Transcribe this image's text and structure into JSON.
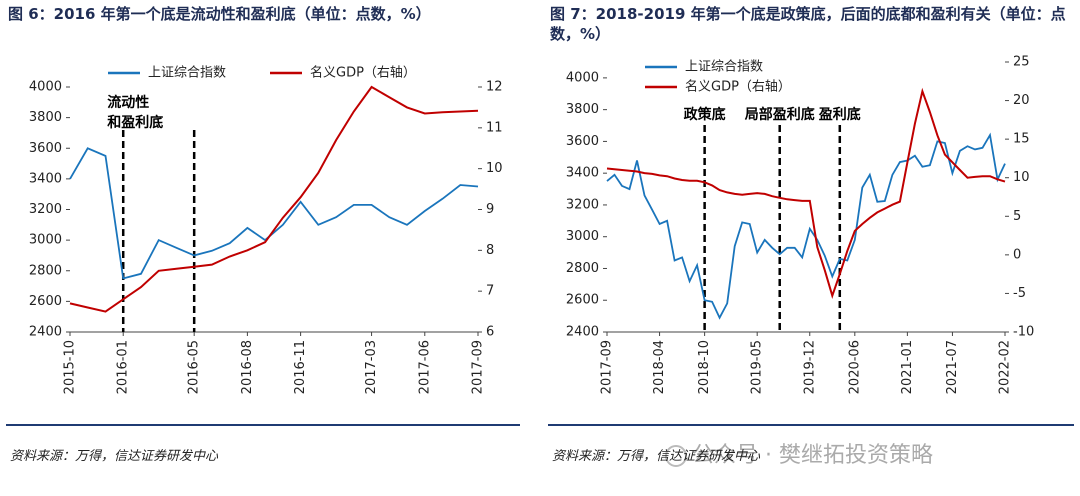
{
  "chart_data": [
    {
      "type": "line",
      "title": "图 6：2016 年第一个底是流动性和盈利底（单位：点数，%）",
      "x": [
        "2015-10",
        "2015-11",
        "2015-12",
        "2016-01",
        "2016-02",
        "2016-03",
        "2016-04",
        "2016-05",
        "2016-06",
        "2016-07",
        "2016-08",
        "2016-09",
        "2016-10",
        "2016-11",
        "2016-12",
        "2017-01",
        "2017-02",
        "2017-03",
        "2017-04",
        "2017-05",
        "2017-06",
        "2017-07",
        "2017-08",
        "2017-09"
      ],
      "xticks": [
        "2015-10",
        "2016-01",
        "2016-05",
        "2016-08",
        "2016-11",
        "2017-03",
        "2017-06",
        "2017-09"
      ],
      "series": [
        {
          "name": "上证综合指数",
          "color": "#1a75bc",
          "values": [
            3400,
            3600,
            3550,
            2750,
            2780,
            3000,
            2950,
            2900,
            2930,
            2980,
            3080,
            3000,
            3100,
            3250,
            3100,
            3150,
            3230,
            3230,
            3150,
            3100,
            3190,
            3270,
            3360,
            3350
          ]
        },
        {
          "name": "名义GDP（右轴）",
          "color": "#c00000",
          "axis": "y2",
          "values": [
            6.7,
            6.6,
            6.5,
            6.8,
            7.1,
            7.5,
            7.55,
            7.6,
            7.65,
            7.85,
            8.0,
            8.2,
            8.8,
            9.3,
            9.9,
            10.7,
            11.4,
            12.0,
            11.75,
            11.5,
            11.35,
            11.38,
            11.4,
            11.42
          ]
        }
      ],
      "ylim": [
        2400,
        4000
      ],
      "yticks": [
        2400,
        2600,
        2800,
        3000,
        3200,
        3400,
        3600,
        3800,
        4000
      ],
      "y2lim": [
        6,
        12
      ],
      "y2ticks": [
        6,
        7,
        8,
        9,
        10,
        11,
        12
      ],
      "annotations": [
        {
          "text": [
            "流动性",
            "和盈利底"
          ],
          "x": "2016-01"
        },
        {
          "text": [],
          "x": "2016-05"
        }
      ],
      "source": "资料来源：万得，信达证券研发中心"
    },
    {
      "type": "line",
      "title": "图 7：2018-2019 年第一个底是政策底，后面的底都和盈利有关（单位：点数，%）",
      "x": [
        "2017-09",
        "2017-10",
        "2017-11",
        "2017-12",
        "2018-01",
        "2018-02",
        "2018-03",
        "2018-04",
        "2018-05",
        "2018-06",
        "2018-07",
        "2018-08",
        "2018-09",
        "2018-10",
        "2018-11",
        "2018-12",
        "2019-01",
        "2019-02",
        "2019-03",
        "2019-04",
        "2019-05",
        "2019-06",
        "2019-07",
        "2019-08",
        "2019-09",
        "2019-10",
        "2019-11",
        "2019-12",
        "2020-01",
        "2020-02",
        "2020-03",
        "2020-04",
        "2020-05",
        "2020-06",
        "2020-07",
        "2020-08",
        "2020-09",
        "2020-10",
        "2020-11",
        "2020-12",
        "2021-01",
        "2021-02",
        "2021-03",
        "2021-04",
        "2021-05",
        "2021-06",
        "2021-07",
        "2021-08",
        "2021-09",
        "2021-10",
        "2021-11",
        "2021-12",
        "2022-01",
        "2022-02"
      ],
      "xticks": [
        "2017-09",
        "2018-04",
        "2018-10",
        "2019-05",
        "2019-12",
        "2020-06",
        "2021-01",
        "2021-07",
        "2022-02"
      ],
      "series": [
        {
          "name": "上证综合指数",
          "color": "#1a75bc",
          "values": [
            3350,
            3390,
            3320,
            3300,
            3480,
            3260,
            3170,
            3080,
            3100,
            2850,
            2870,
            2720,
            2820,
            2600,
            2590,
            2490,
            2580,
            2940,
            3090,
            3080,
            2900,
            2980,
            2930,
            2890,
            2930,
            2930,
            2870,
            3050,
            2980,
            2880,
            2750,
            2860,
            2850,
            2980,
            3310,
            3390,
            3220,
            3225,
            3390,
            3470,
            3480,
            3510,
            3440,
            3450,
            3600,
            3590,
            3400,
            3540,
            3570,
            3550,
            3560,
            3640,
            3360,
            3460
          ]
        },
        {
          "name": "名义GDP（右轴）",
          "color": "#c00000",
          "axis": "y2",
          "values": [
            11.2,
            11.1,
            11.0,
            10.9,
            10.8,
            10.6,
            10.5,
            10.3,
            10.2,
            9.9,
            9.7,
            9.6,
            9.6,
            9.4,
            9.0,
            8.4,
            8.1,
            7.9,
            7.8,
            7.9,
            8.0,
            7.9,
            7.6,
            7.4,
            7.2,
            7.1,
            7.0,
            7.0,
            1.0,
            -2.0,
            -5.3,
            -2.5,
            0.5,
            3.1,
            4.0,
            4.8,
            5.5,
            6.0,
            6.5,
            6.9,
            12.0,
            17.0,
            21.2,
            18.5,
            15.5,
            13.0,
            12.0,
            11.0,
            10.0,
            10.1,
            10.2,
            10.2,
            9.8,
            9.5
          ]
        }
      ],
      "ylim": [
        2400,
        4100
      ],
      "yticks": [
        2400,
        2600,
        2800,
        3000,
        3200,
        3400,
        3600,
        3800,
        4000
      ],
      "y2lim": [
        -10,
        25
      ],
      "y2ticks": [
        -10,
        -5,
        0,
        5,
        10,
        15,
        20,
        25
      ],
      "annotations": [
        {
          "text": [
            "政策底"
          ],
          "x": "2018-10"
        },
        {
          "text": [
            "局部盈利底"
          ],
          "x": "2019-08"
        },
        {
          "text": [
            "盈利底"
          ],
          "x": "2020-04"
        }
      ],
      "source": "资料来源：万得，信达证券研发中心"
    }
  ],
  "watermark": "公众号 · 樊继拓投资策略"
}
